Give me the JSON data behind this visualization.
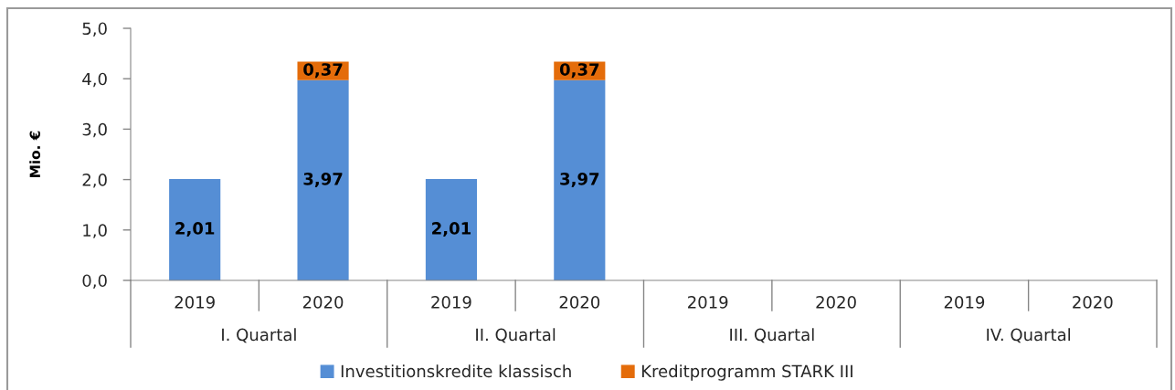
{
  "chart_data": {
    "type": "bar",
    "stacked": true,
    "ylabel": "Mio. €",
    "categories": [
      "2019",
      "2020",
      "2019",
      "2020",
      "2019",
      "2020",
      "2019",
      "2020"
    ],
    "annotations": [
      "I. Quartal",
      "II. Quartal",
      "III. Quartal",
      "IV. Quartal"
    ],
    "series": [
      {
        "name": "Investitionskredite klassisch",
        "color": "#558ed5",
        "values": [
          2.01,
          3.97,
          2.01,
          3.97,
          null,
          null,
          null,
          null
        ],
        "value_labels": [
          "2,01",
          "3,97",
          "2,01",
          "3,97",
          null,
          null,
          null,
          null
        ]
      },
      {
        "name": "Kreditprogramm STARK III",
        "color": "#e46c0a",
        "values": [
          null,
          0.37,
          null,
          0.37,
          null,
          null,
          null,
          null
        ],
        "value_labels": [
          null,
          "0,37",
          null,
          "0,37",
          null,
          null,
          null,
          null
        ]
      }
    ],
    "ylim": [
      0,
      5
    ],
    "yticks": [
      {
        "value": 0,
        "label": "0,0"
      },
      {
        "value": 1,
        "label": "1,0"
      },
      {
        "value": 2,
        "label": "2,0"
      },
      {
        "value": 3,
        "label": "3,0"
      },
      {
        "value": 4,
        "label": "4,0"
      },
      {
        "value": 5,
        "label": "5,0"
      }
    ],
    "legend": "bottom"
  }
}
